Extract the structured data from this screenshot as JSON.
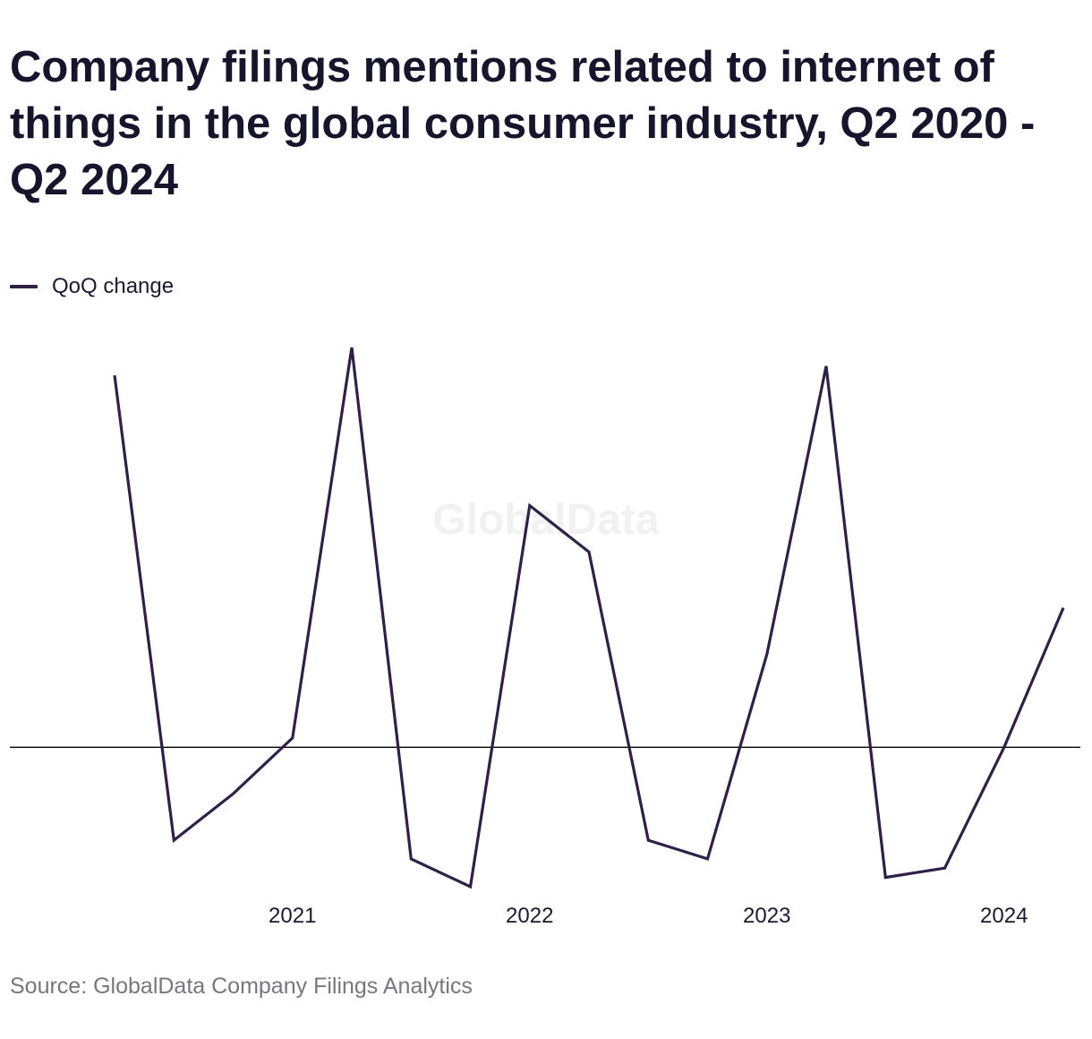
{
  "title": "Company filings mentions related to internet of things in the global consumer industry, Q2 2020 - Q2 2024",
  "watermark": "GlobalData",
  "source": "Source: GlobalData Company Filings Analytics",
  "colors": {
    "series": "#2e2047",
    "zero_line": "#000000",
    "text": "#1b1a2e",
    "source_text": "#77777f",
    "watermark": "#f1f1f1"
  },
  "chart_data": {
    "type": "line",
    "title": "Company filings mentions related to internet of things in the global consumer industry, Q2 2020 - Q2 2024",
    "xlabel": "",
    "ylabel": "",
    "x": [
      "Q2 2020",
      "Q3 2020",
      "Q4 2020",
      "Q1 2021",
      "Q2 2021",
      "Q3 2021",
      "Q4 2021",
      "Q1 2022",
      "Q2 2022",
      "Q3 2022",
      "Q4 2022",
      "Q1 2023",
      "Q2 2023",
      "Q3 2023",
      "Q4 2023",
      "Q1 2024",
      "Q2 2024"
    ],
    "x_tick_labels": [
      {
        "label": "2021",
        "at": "Q1 2021"
      },
      {
        "label": "2022",
        "at": "Q1 2022"
      },
      {
        "label": "2023",
        "at": "Q1 2023"
      },
      {
        "label": "2024",
        "at": "Q1 2024"
      }
    ],
    "series": [
      {
        "name": "QoQ change",
        "values": [
          0.4,
          -0.1,
          -0.05,
          0.01,
          0.43,
          -0.12,
          -0.15,
          0.26,
          0.21,
          -0.1,
          -0.12,
          0.1,
          0.41,
          -0.14,
          -0.13,
          0.0,
          0.15
        ]
      }
    ],
    "ylim": [
      -0.15,
      0.43
    ],
    "zero_line": true,
    "y_axis_labels_shown": false,
    "grid": false,
    "legend": "top-left"
  }
}
